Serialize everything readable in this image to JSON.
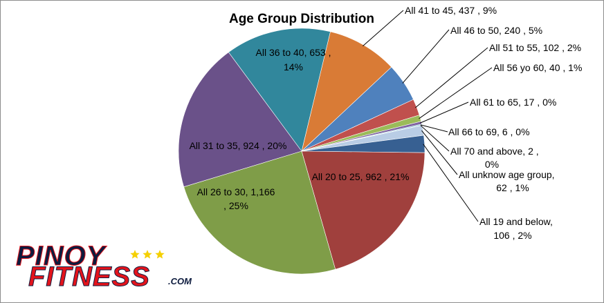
{
  "chart_data": {
    "type": "pie",
    "title": "Age Group Distribution",
    "slices": [
      {
        "category": "All 41 to 45",
        "value": 437,
        "percent": "9%",
        "label": "All 41 to 45, 437 , 9%",
        "color": "#D97B36"
      },
      {
        "category": "All 46 to 50",
        "value": 240,
        "percent": "5%",
        "label": "All 46 to 50, 240 , 5%",
        "color": "#4F81BD"
      },
      {
        "category": "All 51 to 55",
        "value": 102,
        "percent": "2%",
        "label": "All 51 to 55, 102 , 2%",
        "color": "#C0504D"
      },
      {
        "category": "All 56 yo 60",
        "value": 40,
        "percent": "1%",
        "label": "All 56 yo 60, 40 , 1%",
        "color": "#9BBB59"
      },
      {
        "category": "All 61 to 65",
        "value": 17,
        "percent": "0%",
        "label": "All 61 to 65, 17 , 0%",
        "color": "#8064A2"
      },
      {
        "category": "All 66 to 69",
        "value": 6,
        "percent": "0%",
        "label": "All 66 to 69, 6 , 0%",
        "color": "#4BACC6"
      },
      {
        "category": "All 70 and above",
        "value": 2,
        "percent": "0%",
        "label": "All 70 and above, 2 , 0%",
        "color": "#F79646"
      },
      {
        "category": "All unknow age group",
        "value": 62,
        "percent": "1%",
        "label": "All unknow age group, 62 , 1%",
        "color": "#B9CDE5"
      },
      {
        "category": "All 19 and below",
        "value": 106,
        "percent": "2%",
        "label": "All 19 and below, 106 , 2%",
        "color": "#376092"
      },
      {
        "category": "All 20 to 25",
        "value": 962,
        "percent": "21%",
        "label": "All 20 to 25, 962 , 21%",
        "color": "#A0403D"
      },
      {
        "category": "All 26 to 30",
        "value": 1166,
        "percent": "25%",
        "label": "All 26 to 30, 1,166 , 25%",
        "color": "#7F9D48"
      },
      {
        "category": "All 31 to 35",
        "value": 924,
        "percent": "20%",
        "label": "All 31 to 35, 924 , 20%",
        "color": "#6A5189"
      },
      {
        "category": "All 36 to 40",
        "value": 653,
        "percent": "14%",
        "label": "All 36 to 40, 653 , 14%",
        "color": "#31879C"
      }
    ],
    "legend": "none"
  },
  "logo": {
    "line1": "PINOY",
    "line2": "FITNESS",
    "suffix": ".COM",
    "star_color": "#F5D000",
    "red": "#E3141C",
    "dark": "#0D1B3E"
  }
}
